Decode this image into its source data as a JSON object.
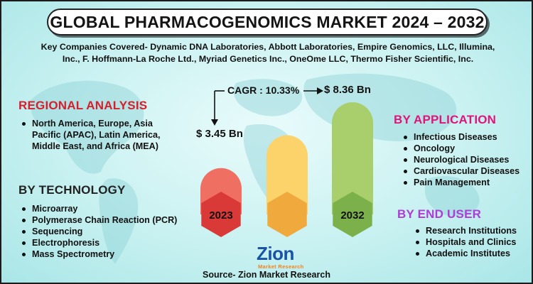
{
  "title": "GLOBAL PHARMACOGENOMICS MARKET 2024 – 2032",
  "companies_line1": "Key Companies Covered- Dynamic DNA Laboratories, Abbott Laboratories, Empire Genomics, LLC, Illumina,",
  "companies_line2": "Inc., F. Hoffmann-La Roche Ltd., Myriad Genetics Inc., OneOme LLC, Thermo Fisher Scientific, Inc.",
  "regional": {
    "heading": "REGIONAL ANALYSIS",
    "items": [
      "North America, Europe, Asia Pacific (APAC), Latin America, Middle East, and Africa (MEA)"
    ]
  },
  "technology": {
    "heading": "BY TECHNOLOGY",
    "items": [
      "Microarray",
      "Polymerase Chain Reaction (PCR)",
      "Sequencing",
      "Electrophoresis",
      "Mass Spectrometry"
    ]
  },
  "application": {
    "heading": "BY APPLICATION",
    "items": [
      "Infectious Diseases",
      "Oncology",
      "Neurological Diseases",
      "Cardiovascular Diseases",
      "Pain Management"
    ]
  },
  "end_user": {
    "heading": "BY END USER",
    "items": [
      "Research Institutions",
      "Hospitals and Clinics",
      "Academic Institutes"
    ]
  },
  "cagr_label": "CAGR : 10.33%",
  "logo": {
    "word": "Zion",
    "sub": "Market Research"
  },
  "source": "Source- Zion Market Research",
  "colors": {
    "bar_2023": "#ef6f62",
    "bar_mid": "#fbd36a",
    "bar_2032": "#a8cf6c",
    "hex_2023": "#d93a37",
    "hex_mid": "#f0a93c",
    "hex_2032": "#7cb04a"
  },
  "chart_data": {
    "type": "bar",
    "categories": [
      "2023",
      "",
      "2032"
    ],
    "values": [
      3.45,
      5.9,
      8.36
    ],
    "value_labels": [
      "$ 3.45 Bn",
      "",
      "$ 8.36 Bn"
    ],
    "annotation": "CAGR : 10.33%"
  }
}
